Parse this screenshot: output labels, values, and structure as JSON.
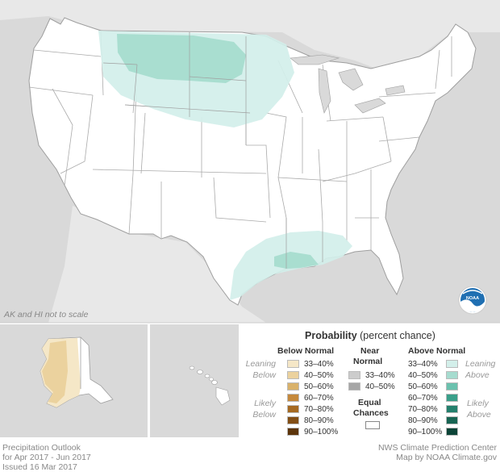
{
  "colors": {
    "above_33_40": "#d3efea",
    "above_40_50": "#a6dccf",
    "above_50_60": "#6bc1ae",
    "above_60_70": "#3a9f8a",
    "above_70_80": "#24806d",
    "above_80_90": "#186553",
    "above_90_100": "#0b4437",
    "below_33_40": "#f5e7c7",
    "below_40_50": "#ebd29e",
    "below_50_60": "#d9b26b",
    "below_60_70": "#c5893c",
    "below_70_80": "#a66a22",
    "below_80_90": "#824e15",
    "below_90_100": "#5c340a",
    "near_33_40": "#cccccc",
    "near_40_50": "#a6a6a6",
    "water": "#d9d9d9",
    "land": "#ffffff"
  },
  "map": {
    "scale_note": "AK and HI not to scale",
    "logo": "noaa-logo"
  },
  "legend": {
    "title_bold": "Probability",
    "title_rest": "(percent chance)",
    "below_header": "Below Normal",
    "near_header_1": "Near",
    "near_header_2": "Normal",
    "above_header": "Above Normal",
    "leaning": "Leaning",
    "below_word": "Below",
    "above_word": "Above",
    "likely": "Likely",
    "equal_1": "Equal",
    "equal_2": "Chances",
    "below_ranges": [
      "33–40%",
      "40–50%",
      "50–60%",
      "60–70%",
      "70–80%",
      "80–90%",
      "90–100%"
    ],
    "near_ranges": [
      "33–40%",
      "40–50%"
    ],
    "above_ranges": [
      "33–40%",
      "40–50%",
      "50–60%",
      "60–70%",
      "70–80%",
      "80–90%",
      "90–100%"
    ]
  },
  "footer": {
    "left_line1": "Precipitation Outlook",
    "left_line2": "for Apr 2017 - Jun 2017",
    "left_line3": "Issued 16 Mar 2017",
    "right_line1": "NWS Climate Prediction Center",
    "right_line2": "Map by NOAA Climate.gov"
  }
}
